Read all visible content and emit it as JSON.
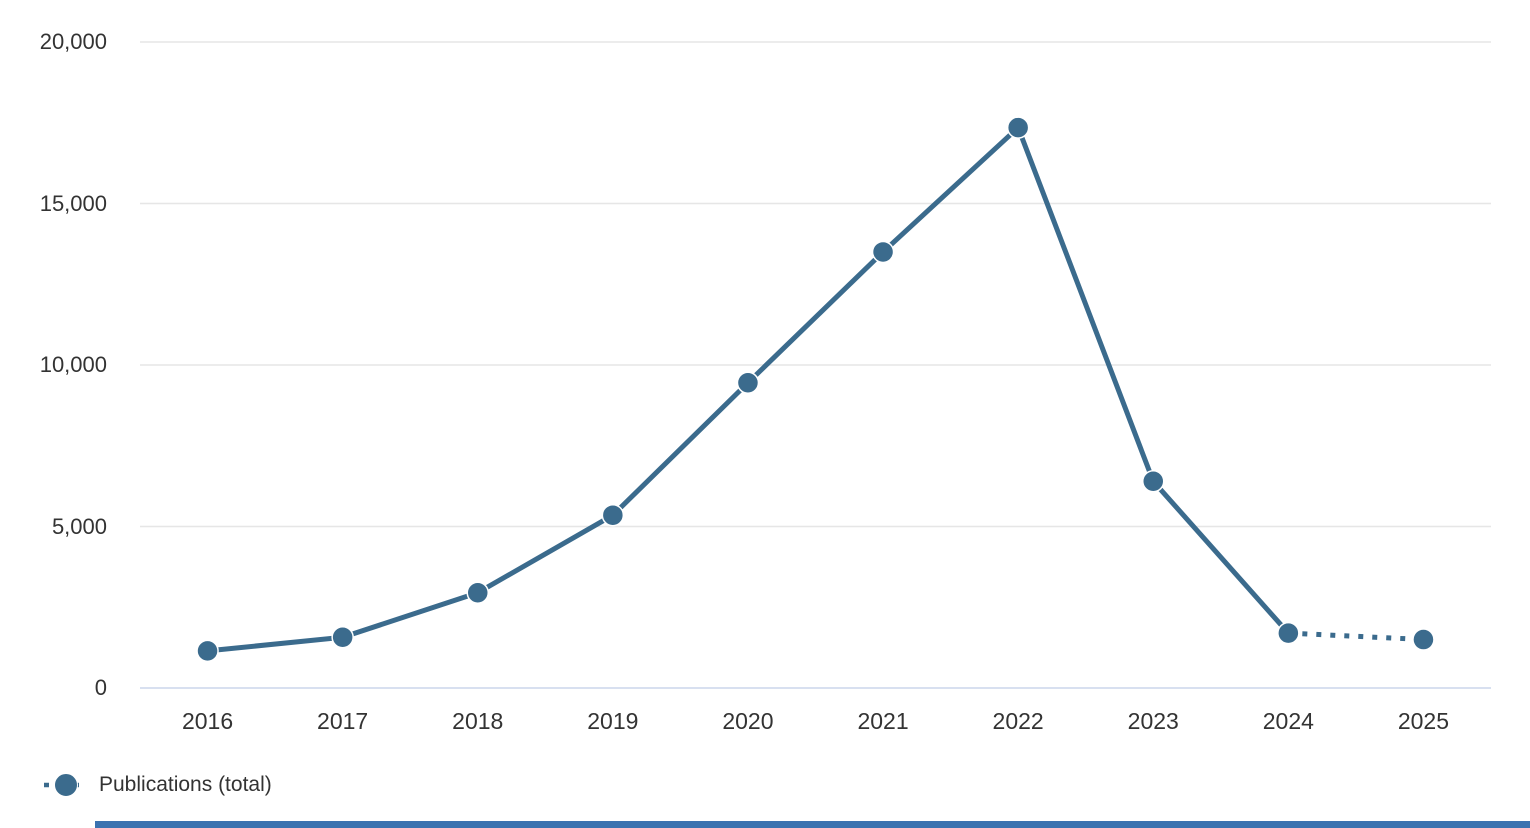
{
  "chart_data": {
    "type": "line",
    "title": "",
    "x": [
      "2016",
      "2017",
      "2018",
      "2019",
      "2020",
      "2021",
      "2022",
      "2023",
      "2024",
      "2025"
    ],
    "series": [
      {
        "name": "Publications (total)",
        "values": [
          1150,
          1570,
          2950,
          5350,
          9450,
          13500,
          17350,
          6400,
          1700,
          1500
        ],
        "dotted_last_segment": true
      }
    ],
    "yticks": [
      0,
      5000,
      10000,
      15000,
      20000
    ],
    "ytick_labels": [
      "0",
      "5,000",
      "10,000",
      "15,000",
      "20,000"
    ],
    "ylim": [
      0,
      20000
    ],
    "grid": true,
    "legend_position": "bottom-left",
    "colors": {
      "series": "#3b6b8d",
      "grid": "#e6e6e6",
      "axis_line": "#ccd6eb",
      "label": "#333333",
      "menu_icon": "#666666",
      "bottom_bar": "#3a72b0"
    }
  },
  "legend": {
    "label": "Publications (total)"
  },
  "icons": {
    "context_menu": "hamburger-menu"
  }
}
